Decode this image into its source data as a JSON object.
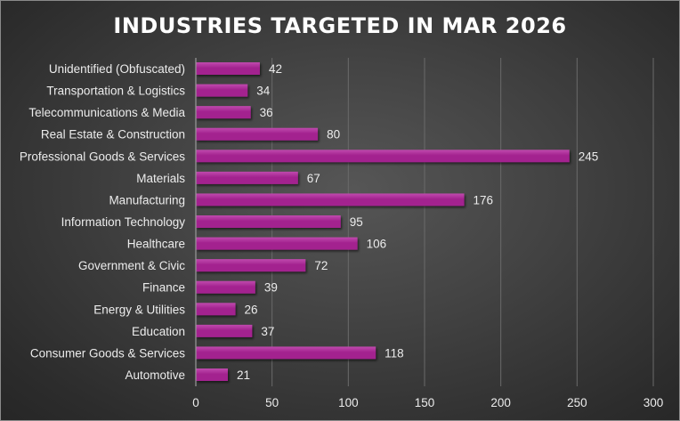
{
  "chart_data": {
    "type": "bar",
    "orientation": "horizontal",
    "title": "INDUSTRIES TARGETED IN MAR 2026",
    "xlabel": "",
    "ylabel": "",
    "categories": [
      "Unidentified (Obfuscated)",
      "Transportation & Logistics",
      "Telecommunications & Media",
      "Real Estate & Construction",
      "Professional Goods & Services",
      "Materials",
      "Manufacturing",
      "Information Technology",
      "Healthcare",
      "Government & Civic",
      "Finance",
      "Energy & Utilities",
      "Education",
      "Consumer Goods & Services",
      "Automotive"
    ],
    "values": [
      42,
      34,
      36,
      80,
      245,
      67,
      176,
      95,
      106,
      72,
      39,
      26,
      37,
      118,
      21
    ],
    "xlim": [
      0,
      300
    ],
    "xticks": [
      "0",
      "50",
      "100",
      "150",
      "200",
      "250",
      "300"
    ],
    "xtick_values": [
      0,
      50,
      100,
      150,
      200,
      250,
      300
    ],
    "grid": true,
    "legend": "none",
    "data_labels": true,
    "bar_color": "#a3238f",
    "bar_highlight_color": "#c04aae"
  }
}
